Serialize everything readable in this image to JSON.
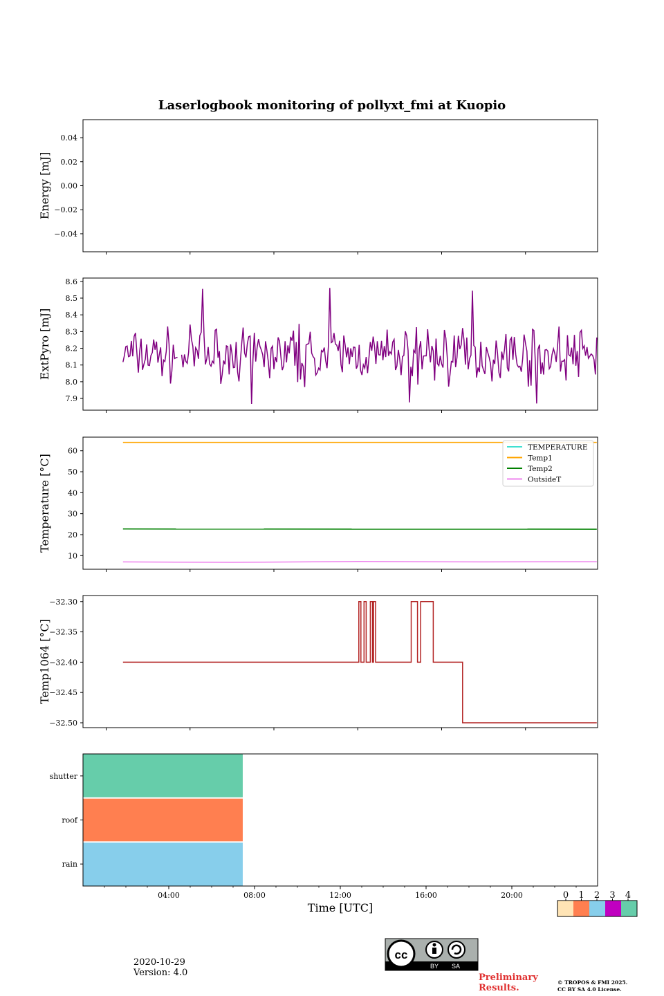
{
  "figure": {
    "title": "Laserlogbook monitoring of pollyxt_fmi at Kuopio",
    "date": "2020-10-29",
    "version": "Version: 4.0",
    "preliminary_line1": "Preliminary",
    "preliminary_line2": "Results.",
    "copyright_line1": "© TROPOS & FMI 2025.",
    "copyright_line2": "CC BY SA 4.0 License.",
    "license_badge": {
      "by": "BY",
      "sa": "SA",
      "cc": "cc"
    },
    "colors": {
      "purple": "#800080",
      "temperature": "#40e0d0",
      "temp1": "#ffa500",
      "temp2": "#008000",
      "outside": "#ee82ee",
      "temp1064": "#b22222",
      "flag0": "#ffe4b5",
      "flag1": "#ff7f50",
      "flag2": "#87ceeb",
      "flag3": "#c000c0",
      "flag4": "#66cdaa",
      "preliminary": "#e03030"
    }
  },
  "chart_data": [
    {
      "type": "line",
      "ylabel": "Energy [mJ]",
      "ylim": [
        -0.055,
        0.055
      ],
      "yticks": [
        0.04,
        0.02,
        0.0,
        -0.02,
        -0.04
      ],
      "ytick_labels": [
        "0.04",
        "0.02",
        "0.00",
        "−0.02",
        "−0.04"
      ],
      "series": []
    },
    {
      "type": "line",
      "ylabel": "ExtPyro [mJ]",
      "ylim": [
        7.83,
        8.62
      ],
      "yticks": [
        8.6,
        8.5,
        8.4,
        8.3,
        8.2,
        8.1,
        8.0,
        7.9
      ],
      "ytick_labels": [
        "8.6",
        "8.5",
        "8.4",
        "8.3",
        "8.2",
        "8.1",
        "8.0",
        "7.9"
      ],
      "series": [
        {
          "name": "ExtPyro",
          "mean": 8.16,
          "min": 7.86,
          "max": 8.57,
          "x_start_hour": 0.8,
          "x_end_hour": 23.4
        }
      ]
    },
    {
      "type": "line",
      "ylabel": "Temperature [°C]",
      "ylim": [
        3.5,
        66.5
      ],
      "yticks": [
        60,
        50,
        40,
        30,
        20,
        10
      ],
      "ytick_labels": [
        "60",
        "50",
        "40",
        "30",
        "20",
        "10"
      ],
      "legend": [
        "TEMPERATURE",
        "Temp1",
        "Temp2",
        "OutsideT"
      ],
      "series": [
        {
          "name": "TEMPERATURE",
          "values": []
        },
        {
          "name": "Temp1",
          "x": [
            0.8,
            23.4
          ],
          "values": [
            64,
            64
          ]
        },
        {
          "name": "Temp2",
          "x": [
            0.8,
            23.4
          ],
          "values": [
            22.7,
            22.6
          ]
        },
        {
          "name": "OutsideT",
          "x": [
            0.8,
            6,
            12,
            18,
            23.4
          ],
          "values": [
            7.0,
            6.8,
            7.2,
            7.0,
            7.1
          ]
        }
      ]
    },
    {
      "type": "line",
      "ylabel": "Temp1064 [°C]",
      "ylim": [
        -32.508,
        -32.29
      ],
      "yticks": [
        -32.3,
        -32.35,
        -32.4,
        -32.45,
        -32.5
      ],
      "ytick_labels": [
        "−32.30",
        "−32.35",
        "−32.40",
        "−32.45",
        "−32.50"
      ],
      "series": [
        {
          "name": "Temp1064",
          "x": [
            0.8,
            12.05,
            12.05,
            12.15,
            12.15,
            12.3,
            12.3,
            12.4,
            12.4,
            12.6,
            12.6,
            12.7,
            12.7,
            12.75,
            12.75,
            12.85,
            12.85,
            14.55,
            14.55,
            14.65,
            14.65,
            14.85,
            14.85,
            15.0,
            15.0,
            15.6,
            15.6,
            17.0,
            17.0,
            23.4
          ],
          "values": [
            -32.4,
            -32.4,
            -32.3,
            -32.3,
            -32.4,
            -32.4,
            -32.3,
            -32.3,
            -32.4,
            -32.4,
            -32.3,
            -32.3,
            -32.4,
            -32.4,
            -32.3,
            -32.3,
            -32.4,
            -32.4,
            -32.3,
            -32.3,
            -32.3,
            -32.3,
            -32.4,
            -32.4,
            -32.3,
            -32.3,
            -32.4,
            -32.4,
            -32.5,
            -32.5
          ]
        }
      ]
    },
    {
      "type": "heatmap",
      "xlabel": "Time [UTC]",
      "xlim_hours": [
        0,
        24
      ],
      "xticks_hours": [
        4,
        8,
        12,
        16,
        20
      ],
      "xtick_labels": [
        "04:00",
        "08:00",
        "12:00",
        "16:00",
        "20:00"
      ],
      "rows": [
        "shutter",
        "roof",
        "rain"
      ],
      "row_values": [
        4,
        1,
        2
      ],
      "x_start_hour": 0,
      "x_end_hour": 7.45,
      "colorbar_labels": [
        "0",
        "1",
        "2",
        "3",
        "4"
      ]
    }
  ]
}
